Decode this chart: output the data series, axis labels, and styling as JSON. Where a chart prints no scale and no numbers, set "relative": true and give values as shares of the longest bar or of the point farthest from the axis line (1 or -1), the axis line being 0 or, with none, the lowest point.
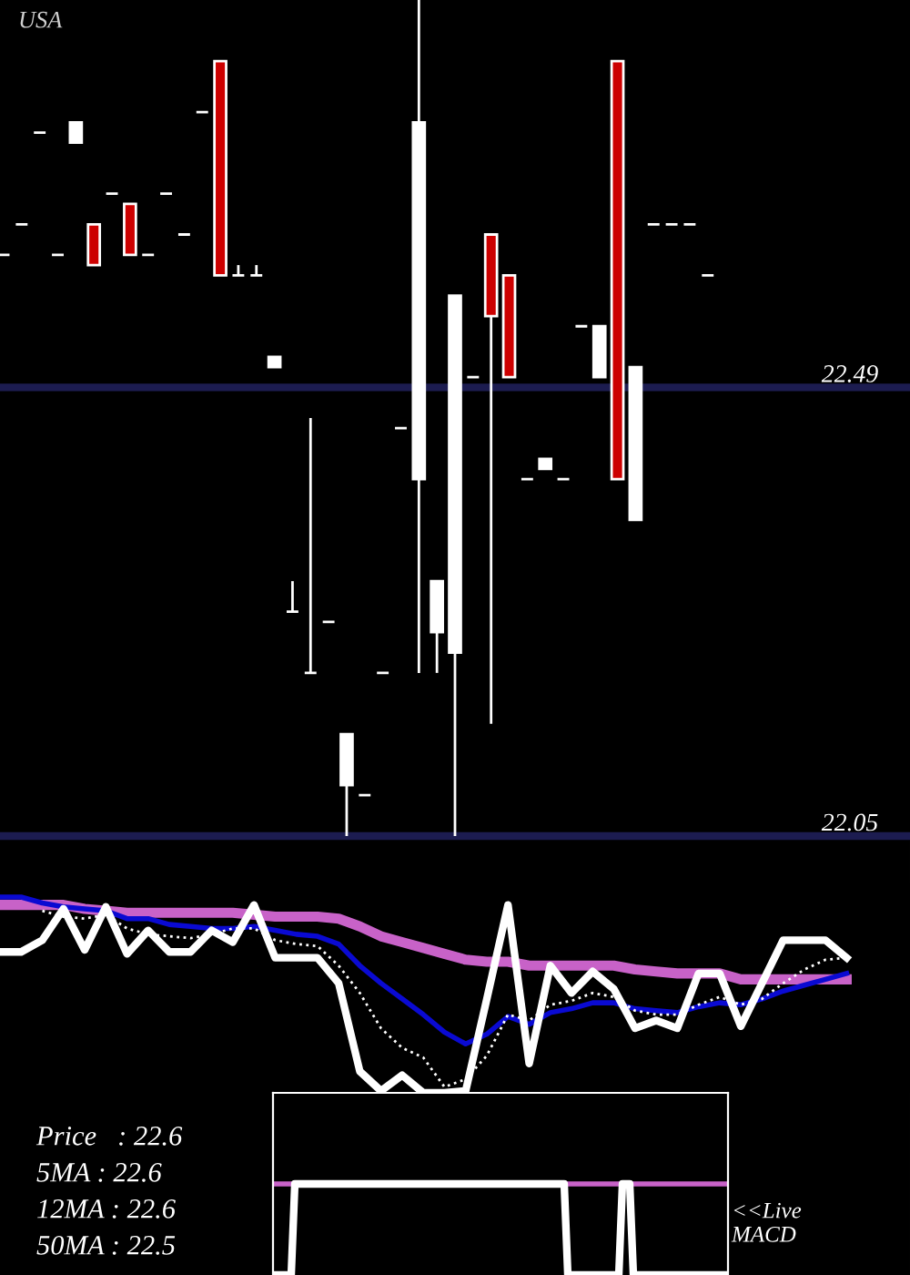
{
  "chart_data": [
    {
      "type": "candlestick",
      "title": "USA",
      "categories": [
        null,
        null,
        null,
        null,
        null,
        null,
        null,
        null,
        null,
        null,
        null,
        null,
        null,
        null,
        null,
        null,
        null,
        null,
        null,
        null,
        null,
        null,
        null,
        null,
        null,
        null,
        null,
        null,
        null,
        null,
        null,
        null,
        null,
        null,
        null,
        null,
        null,
        null,
        null,
        null
      ],
      "ohlc": [
        [
          22.62,
          22.62,
          22.62,
          22.62
        ],
        [
          22.65,
          22.65,
          22.65,
          22.65
        ],
        [
          22.74,
          22.74,
          22.74,
          22.74
        ],
        [
          22.62,
          22.62,
          22.62,
          22.62
        ],
        [
          22.73,
          22.75,
          22.73,
          22.75
        ],
        [
          22.65,
          22.65,
          22.61,
          22.61
        ],
        [
          22.68,
          22.68,
          22.68,
          22.68
        ],
        [
          22.67,
          22.67,
          22.62,
          22.62
        ],
        [
          22.62,
          22.62,
          22.62,
          22.62
        ],
        [
          22.68,
          22.68,
          22.68,
          22.68
        ],
        [
          22.64,
          22.64,
          22.64,
          22.64
        ],
        [
          22.76,
          22.76,
          22.76,
          22.76
        ],
        [
          22.81,
          22.81,
          22.6,
          22.6
        ],
        [
          22.6,
          22.61,
          22.6,
          22.6
        ],
        [
          22.6,
          22.61,
          22.6,
          22.6
        ],
        [
          22.51,
          22.52,
          22.51,
          22.52
        ],
        [
          22.27,
          22.3,
          22.27,
          22.27
        ],
        [
          22.21,
          22.46,
          22.21,
          22.21
        ],
        [
          22.26,
          22.26,
          22.26,
          22.26
        ],
        [
          22.1,
          22.15,
          22.05,
          22.15
        ],
        [
          22.09,
          22.09,
          22.09,
          22.09
        ],
        [
          22.21,
          22.21,
          22.21,
          22.21
        ],
        [
          22.45,
          22.45,
          22.45,
          22.45
        ],
        [
          22.4,
          22.87,
          22.21,
          22.75
        ],
        [
          22.25,
          22.3,
          22.21,
          22.3
        ],
        [
          22.23,
          22.58,
          22.05,
          22.58
        ],
        [
          22.5,
          22.5,
          22.5,
          22.5
        ],
        [
          22.64,
          22.64,
          22.16,
          22.56
        ],
        [
          22.6,
          22.6,
          22.5,
          22.5
        ],
        [
          22.4,
          22.4,
          22.4,
          22.4
        ],
        [
          22.41,
          22.42,
          22.41,
          22.42
        ],
        [
          22.4,
          22.4,
          22.4,
          22.4
        ],
        [
          22.55,
          22.55,
          22.55,
          22.55
        ],
        [
          22.5,
          22.55,
          22.5,
          22.55
        ],
        [
          22.81,
          22.81,
          22.4,
          22.4
        ],
        [
          22.36,
          22.51,
          22.36,
          22.51
        ],
        [
          22.65,
          22.65,
          22.65,
          22.65
        ],
        [
          22.65,
          22.65,
          22.65,
          22.65
        ],
        [
          22.65,
          22.65,
          22.65,
          22.65
        ],
        [
          22.6,
          22.6,
          22.6,
          22.6
        ]
      ],
      "colors": [
        "#ffffff",
        "#ffffff",
        "#ffffff",
        "#ffffff",
        "#ffffff",
        "#cc0000",
        "#ffffff",
        "#cc0000",
        "#ffffff",
        "#ffffff",
        "#ffffff",
        "#ffffff",
        "#cc0000",
        "#ffffff",
        "#ffffff",
        "#ffffff",
        "#ffffff",
        "#ffffff",
        "#ffffff",
        "#ffffff",
        "#ffffff",
        "#ffffff",
        "#ffffff",
        "#ffffff",
        "#ffffff",
        "#ffffff",
        "#ffffff",
        "#cc0000",
        "#cc0000",
        "#ffffff",
        "#ffffff",
        "#ffffff",
        "#ffffff",
        "#ffffff",
        "#cc0000",
        "#ffffff",
        "#ffffff",
        "#ffffff",
        "#ffffff",
        "#ffffff"
      ],
      "ylim": [
        22.05,
        22.87
      ],
      "yticks": [
        22.49,
        22.05
      ],
      "tick_labels": "y",
      "ref_lines": [
        {
          "axis": "y",
          "value": 22.49,
          "color": "#1c1c50"
        },
        {
          "axis": "y",
          "value": 22.05,
          "color": "#1c1c50"
        }
      ]
    },
    {
      "type": "line",
      "relative": true,
      "categories": [
        null,
        null,
        null,
        null,
        null,
        null,
        null,
        null,
        null,
        null,
        null,
        null,
        null,
        null,
        null,
        null,
        null,
        null,
        null,
        null,
        null,
        null,
        null,
        null,
        null,
        null,
        null,
        null,
        null,
        null,
        null,
        null,
        null,
        null,
        null,
        null,
        null,
        null,
        null,
        null,
        null
      ],
      "series": [
        {
          "color": "#c862c8",
          "values": [
            0.96,
            0.96,
            0.96,
            0.96,
            0.94,
            0.93,
            0.92,
            0.92,
            0.92,
            0.92,
            0.92,
            0.92,
            0.91,
            0.9,
            0.9,
            0.9,
            0.89,
            0.85,
            0.8,
            0.77,
            0.74,
            0.71,
            0.68,
            0.67,
            0.67,
            0.65,
            0.65,
            0.65,
            0.65,
            0.65,
            0.63,
            0.62,
            0.61,
            0.61,
            0.61,
            0.58,
            0.58,
            0.58,
            0.58,
            0.58,
            0.58
          ]
        },
        {
          "color": "#0a0ad2",
          "values": [
            1.0,
            1.0,
            0.97,
            0.95,
            0.94,
            0.93,
            0.89,
            0.89,
            0.86,
            0.85,
            0.84,
            0.84,
            0.85,
            0.83,
            0.81,
            0.8,
            0.76,
            0.65,
            0.56,
            0.48,
            0.4,
            0.31,
            0.25,
            0.3,
            0.39,
            0.35,
            0.41,
            0.43,
            0.46,
            0.46,
            0.43,
            0.42,
            0.41,
            0.44,
            0.46,
            0.45,
            0.48,
            0.52,
            0.55,
            0.58,
            0.61
          ]
        },
        {
          "color": "#ffffff",
          "line_style": "dotted",
          "values": [
            null,
            null,
            0.93,
            0.9,
            0.89,
            0.91,
            0.84,
            0.81,
            0.8,
            0.79,
            0.81,
            0.84,
            0.84,
            0.78,
            0.76,
            0.75,
            0.65,
            0.51,
            0.33,
            0.23,
            0.18,
            0.03,
            0.07,
            0.19,
            0.4,
            0.37,
            0.45,
            0.47,
            0.51,
            0.49,
            0.42,
            0.4,
            0.4,
            0.45,
            0.49,
            0.45,
            0.48,
            0.56,
            0.63,
            0.68,
            0.69
          ]
        },
        {
          "color": "#ffffff",
          "values": [
            0.72,
            0.72,
            0.78,
            0.94,
            0.73,
            0.95,
            0.71,
            0.83,
            0.72,
            0.72,
            0.83,
            0.77,
            0.96,
            0.69,
            0.69,
            0.69,
            0.56,
            0.11,
            0.01,
            0.09,
            0.0,
            0.0,
            0.01,
            0.48,
            0.96,
            0.15,
            0.65,
            0.51,
            0.62,
            0.53,
            0.33,
            0.37,
            0.33,
            0.61,
            0.61,
            0.34,
            0.56,
            0.78,
            0.78,
            0.78,
            0.69
          ]
        }
      ],
      "annotations": [
        "Price   : 22.6",
        "5MA : 22.6",
        "12MA : 22.6",
        "50MA : 22.5"
      ]
    },
    {
      "type": "line",
      "relative": true,
      "categories": [
        null,
        null,
        null,
        null,
        null,
        null,
        null,
        null,
        null,
        null,
        null,
        null,
        null,
        null,
        null,
        null,
        null,
        null,
        null,
        null,
        null,
        null,
        null,
        null,
        null,
        null,
        null,
        null,
        null,
        null,
        null,
        null,
        null,
        null,
        null,
        null,
        null,
        null,
        null,
        null,
        null,
        null,
        null,
        null,
        null,
        null,
        null,
        null,
        null,
        null,
        null,
        null,
        null,
        null,
        null,
        null,
        null,
        null,
        null,
        null,
        null,
        null,
        null,
        null,
        null,
        null,
        null,
        null,
        null,
        null,
        null,
        null,
        null,
        null,
        null,
        null,
        null,
        null,
        null,
        null,
        null,
        null,
        null,
        null,
        null,
        null,
        null,
        null,
        null,
        null,
        null,
        null,
        null,
        null,
        null,
        null,
        null,
        null,
        null,
        null,
        null,
        null,
        null,
        null,
        null,
        null,
        null,
        null,
        null,
        null,
        null,
        null,
        null,
        null,
        null,
        null,
        null,
        null,
        null,
        null,
        null,
        null,
        null,
        null,
        null,
        null
      ],
      "series": [
        {
          "color": "#c862c8",
          "values": [
            1,
            1,
            1,
            1,
            1,
            1,
            1,
            null,
            null,
            null,
            null,
            null,
            null,
            null,
            null,
            null,
            null,
            null,
            null,
            null,
            null,
            null,
            null,
            null,
            null,
            null,
            null,
            null,
            null,
            null,
            null,
            null,
            null,
            null,
            null,
            null,
            null,
            null,
            null,
            null,
            null,
            null,
            null,
            null,
            null,
            null,
            null,
            null,
            null,
            null,
            null,
            null,
            null,
            null,
            null,
            null,
            null,
            null,
            null,
            null,
            null,
            null,
            null,
            null,
            null,
            null,
            null,
            null,
            null,
            null,
            null,
            null,
            null,
            null,
            null,
            null,
            null,
            null,
            null,
            null,
            1,
            1,
            1,
            1,
            1,
            1,
            1,
            1,
            1,
            1,
            1,
            1,
            1,
            1,
            1,
            1,
            1,
            null,
            1,
            1,
            1,
            1,
            1,
            1,
            1,
            1,
            1,
            1,
            1,
            1,
            1,
            1,
            1,
            1,
            1,
            1,
            1,
            1,
            1,
            1,
            1,
            1,
            1,
            1,
            1,
            1
          ]
        },
        {
          "color": "#ffffff",
          "values": [
            0,
            0,
            0,
            0,
            0,
            0,
            1,
            1,
            1,
            1,
            1,
            1,
            1,
            1,
            1,
            1,
            1,
            1,
            1,
            1,
            1,
            1,
            1,
            1,
            1,
            1,
            1,
            1,
            1,
            1,
            1,
            1,
            1,
            1,
            1,
            1,
            1,
            1,
            1,
            1,
            1,
            1,
            1,
            1,
            1,
            1,
            1,
            1,
            1,
            1,
            1,
            1,
            1,
            1,
            1,
            1,
            1,
            1,
            1,
            1,
            1,
            1,
            1,
            1,
            1,
            1,
            1,
            1,
            1,
            1,
            1,
            1,
            1,
            1,
            1,
            1,
            1,
            1,
            1,
            1,
            1,
            0,
            0,
            0,
            0,
            0,
            0,
            0,
            0,
            0,
            0,
            0,
            0,
            0,
            0,
            0,
            1,
            1,
            1,
            0,
            0,
            0,
            0,
            0,
            0,
            0,
            0,
            0,
            0,
            0,
            0,
            0,
            0,
            0,
            0,
            0,
            0,
            0,
            0,
            0,
            0,
            0,
            0,
            0,
            0,
            0
          ]
        }
      ],
      "annotations": [
        "<<Live\nMACD"
      ]
    }
  ]
}
